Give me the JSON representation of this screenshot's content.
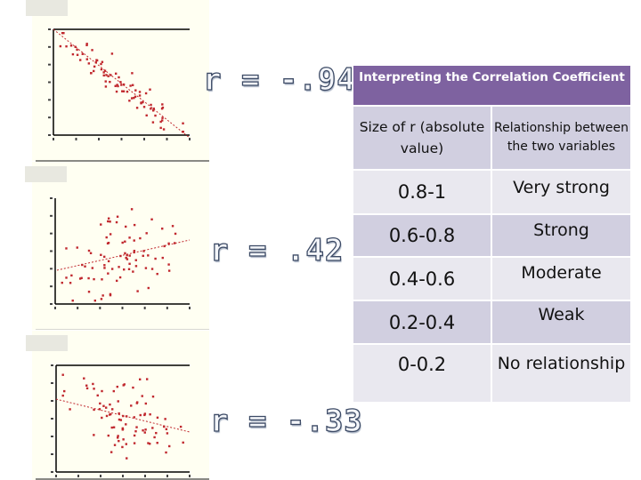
{
  "plots": [
    {
      "r_label": "r = -.94",
      "trend": "negative"
    },
    {
      "r_label": "r = .42",
      "trend": "positive"
    },
    {
      "r_label": "r = -.33",
      "trend": "negative"
    }
  ],
  "table": {
    "title": "Interpreting the Correlation Coefficient",
    "header": {
      "size": "Size of r (absolute value)",
      "relationship": "Relationship between the two variables"
    },
    "rows": [
      {
        "size": "0.8-1",
        "relationship": "Very strong"
      },
      {
        "size": "0.6-0.8",
        "relationship": "Strong"
      },
      {
        "size": "0.4-0.6",
        "relationship": "Moderate"
      },
      {
        "size": "0.2-0.4",
        "relationship": "Weak"
      },
      {
        "size": "0-0.2",
        "relationship": "No relationship"
      }
    ],
    "colors": {
      "title_bg": "#7e62a0",
      "dark_row": "#d1cfe0",
      "light_row": "#e9e8ef"
    }
  },
  "colors": {
    "points": "#c0282e",
    "panel_bg": "#fffff2"
  }
}
